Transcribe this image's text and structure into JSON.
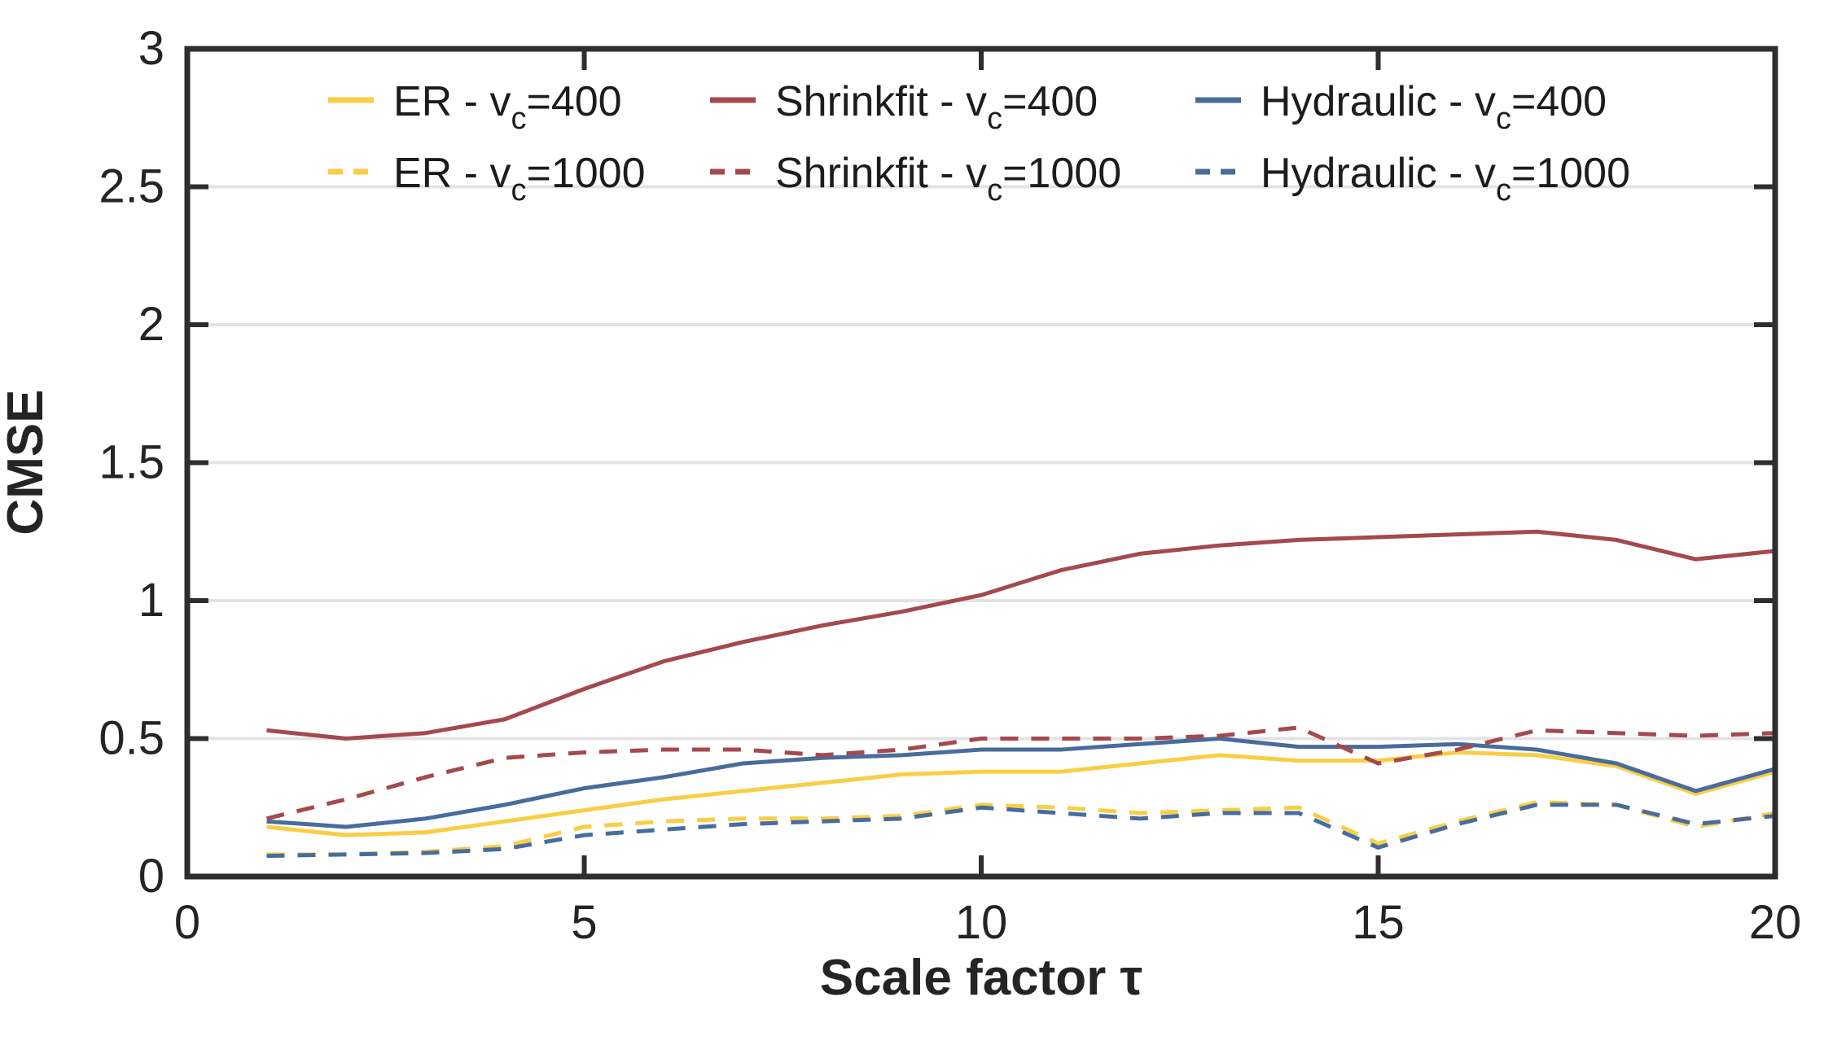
{
  "figure": {
    "background": "#ffffff"
  },
  "chart_data": {
    "type": "line",
    "title": "",
    "xlabel": "Scale factor τ",
    "ylabel": "CMSE",
    "xlim": [
      0,
      20
    ],
    "ylim": [
      0,
      3
    ],
    "xticks": {
      "values": [
        0,
        5,
        10,
        15,
        20
      ],
      "labels": [
        "0",
        "5",
        "10",
        "15",
        "20"
      ]
    },
    "yticks": {
      "values": [
        0,
        0.5,
        1,
        1.5,
        2,
        2.5,
        3
      ],
      "labels": [
        "0",
        "0.5",
        "1",
        "1.5",
        "2",
        "2.5",
        "3"
      ]
    },
    "grid": {
      "horizontal": true,
      "vertical": false
    },
    "grid_color": "#e3e3e3",
    "axis_color": "#2e2e2e",
    "text_color": "#242424",
    "legend_position": "top-inside-two-rows",
    "x": [
      1,
      2,
      3,
      4,
      5,
      6,
      7,
      8,
      9,
      10,
      11,
      12,
      13,
      14,
      15,
      16,
      17,
      18,
      19,
      20
    ],
    "series": [
      {
        "id": "er-vc400",
        "name": "ER - vc=400",
        "legend": {
          "pre": "ER - v",
          "sub": "c",
          "post": "=400"
        },
        "color": "#F9CE45",
        "style": "solid",
        "values": [
          0.18,
          0.15,
          0.16,
          0.2,
          0.24,
          0.28,
          0.31,
          0.34,
          0.37,
          0.38,
          0.38,
          0.41,
          0.44,
          0.42,
          0.42,
          0.45,
          0.44,
          0.4,
          0.3,
          0.38
        ]
      },
      {
        "id": "shrinkfit-vc400",
        "name": "Shrinkfit - vc=400",
        "legend": {
          "pre": "Shrinkfit - v",
          "sub": "c",
          "post": "=400"
        },
        "color": "#A4494D",
        "style": "solid",
        "values": [
          0.53,
          0.5,
          0.52,
          0.57,
          0.68,
          0.78,
          0.85,
          0.91,
          0.96,
          1.02,
          1.11,
          1.17,
          1.2,
          1.22,
          1.23,
          1.24,
          1.25,
          1.22,
          1.15,
          1.18
        ]
      },
      {
        "id": "hydraulic-vc400",
        "name": "Hydraulic - vc=400",
        "legend": {
          "pre": "Hydraulic - v",
          "sub": "c",
          "post": "=400"
        },
        "color": "#486C9C",
        "style": "solid",
        "values": [
          0.2,
          0.18,
          0.21,
          0.26,
          0.32,
          0.36,
          0.41,
          0.43,
          0.44,
          0.46,
          0.46,
          0.48,
          0.5,
          0.47,
          0.47,
          0.48,
          0.46,
          0.41,
          0.31,
          0.39
        ]
      },
      {
        "id": "er-vc1000",
        "name": "ER - vc=1000",
        "legend": {
          "pre": "ER - v",
          "sub": "c",
          "post": "=1000"
        },
        "color": "#F9CE45",
        "style": "dashed",
        "values": [
          0.08,
          0.08,
          0.09,
          0.11,
          0.18,
          0.2,
          0.21,
          0.21,
          0.22,
          0.26,
          0.25,
          0.23,
          0.24,
          0.25,
          0.12,
          0.2,
          0.27,
          0.26,
          0.18,
          0.23
        ]
      },
      {
        "id": "shrinkfit-vc1000",
        "name": "Shrinkfit - vc=1000",
        "legend": {
          "pre": "Shrinkfit - v",
          "sub": "c",
          "post": "=1000"
        },
        "color": "#A4494D",
        "style": "dashed",
        "values": [
          0.21,
          0.28,
          0.36,
          0.43,
          0.45,
          0.46,
          0.46,
          0.44,
          0.46,
          0.5,
          0.5,
          0.5,
          0.51,
          0.54,
          0.41,
          0.46,
          0.53,
          0.52,
          0.51,
          0.52
        ]
      },
      {
        "id": "hydraulic-vc1000",
        "name": "Hydraulic - vc=1000",
        "legend": {
          "pre": "Hydraulic - v",
          "sub": "c",
          "post": "=1000"
        },
        "color": "#486C9C",
        "style": "dashed",
        "values": [
          0.075,
          0.08,
          0.085,
          0.1,
          0.15,
          0.17,
          0.19,
          0.2,
          0.21,
          0.25,
          0.23,
          0.21,
          0.23,
          0.23,
          0.105,
          0.19,
          0.26,
          0.26,
          0.19,
          0.22
        ]
      }
    ]
  }
}
